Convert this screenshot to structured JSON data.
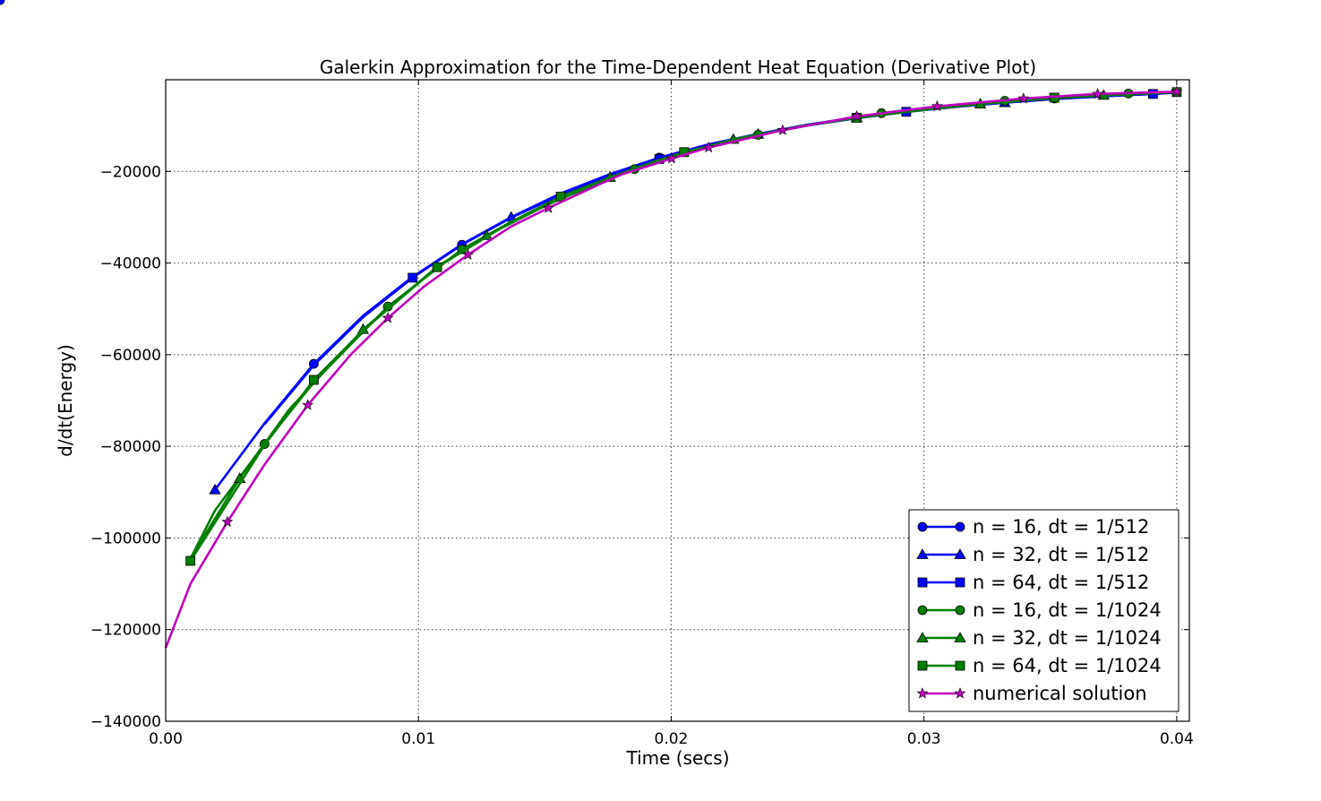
{
  "chart_data": {
    "type": "line",
    "title": "Galerkin Approximation for the Time-Dependent Heat Equation (Derivative Plot)",
    "xlabel": "Time (secs)",
    "ylabel": "d/dt(Energy)",
    "xlim": [
      0.0,
      0.0405
    ],
    "ylim": [
      -140000,
      0
    ],
    "xticks": [
      0.0,
      0.01,
      0.02,
      0.03,
      0.04
    ],
    "xtick_labels": [
      "0.00",
      "0.01",
      "0.02",
      "0.03",
      "0.04"
    ],
    "yticks": [
      -140000,
      -120000,
      -100000,
      -80000,
      -60000,
      -40000,
      -20000
    ],
    "ytick_labels": [
      "−140000",
      "−120000",
      "−100000",
      "−80000",
      "−60000",
      "−40000",
      "−20000"
    ],
    "grid": true,
    "legend_position": "lower right",
    "series": [
      {
        "name": "n = 16, dt = 1/512",
        "color": "#0000ff",
        "marker": "circle",
        "x": [
          0.00391,
          0.00586,
          0.00781,
          0.00977,
          0.01172,
          0.01367,
          0.01563,
          0.01758,
          0.01953,
          0.02148,
          0.02344,
          0.02539,
          0.02734,
          0.0293,
          0.03125,
          0.0332,
          0.03516,
          0.03711,
          0.03906,
          0.04
        ],
        "values": [
          -75000,
          -62000,
          -51500,
          -43000,
          -36000,
          -30000,
          -24800,
          -20600,
          -17000,
          -14100,
          -11800,
          -9800,
          -8200,
          -6900,
          -5800,
          -4900,
          -4100,
          -3500,
          -3000,
          -2700
        ],
        "marker_every": [
          1,
          4,
          8,
          12,
          16,
          20
        ]
      },
      {
        "name": "n = 32, dt = 1/512",
        "color": "#0000ff",
        "marker": "triangle",
        "x": [
          0.00195,
          0.00391,
          0.00586,
          0.00781,
          0.00977,
          0.01172,
          0.01367,
          0.01563,
          0.01758,
          0.01953,
          0.02148,
          0.02344,
          0.02539,
          0.02734,
          0.0293,
          0.03125,
          0.0332,
          0.03516,
          0.03711,
          0.03906,
          0.04
        ],
        "values": [
          -89500,
          -75000,
          -62200,
          -51700,
          -43100,
          -35900,
          -30000,
          -25000,
          -20800,
          -17200,
          -14200,
          -11900,
          -9900,
          -8300,
          -7000,
          -5900,
          -5000,
          -4200,
          -3600,
          -3100,
          -2800
        ],
        "marker_every": [
          0,
          6,
          11,
          16
        ]
      },
      {
        "name": "n = 64, dt = 1/512",
        "color": "#0000ff",
        "marker": "square",
        "x": [
          0.00391,
          0.00586,
          0.00781,
          0.00977,
          0.01172,
          0.01367,
          0.01563,
          0.01758,
          0.01953,
          0.02148,
          0.02344,
          0.02539,
          0.02734,
          0.0293,
          0.03125,
          0.0332,
          0.03516,
          0.03711,
          0.03906,
          0.04
        ],
        "values": [
          -75200,
          -62300,
          -51800,
          -43200,
          -36000,
          -30100,
          -25100,
          -20900,
          -17300,
          -14300,
          -12000,
          -10000,
          -8400,
          -7000,
          -5900,
          -5000,
          -4200,
          -3600,
          -3100,
          -2800
        ],
        "marker_every": [
          3,
          8,
          13,
          18
        ]
      },
      {
        "name": "n = 16, dt = 1/1024",
        "color": "#007f00",
        "marker": "circle",
        "x": [
          0.00098,
          0.00195,
          0.00391,
          0.00586,
          0.00879,
          0.01172,
          0.01367,
          0.01563,
          0.01855,
          0.02051,
          0.02344,
          0.02539,
          0.02832,
          0.03027,
          0.0332,
          0.03516,
          0.03809,
          0.04
        ],
        "values": [
          -104500,
          -94000,
          -79500,
          -66000,
          -49500,
          -37000,
          -31000,
          -26000,
          -19500,
          -16000,
          -12000,
          -9900,
          -7300,
          -6000,
          -4600,
          -3900,
          -3000,
          -2700
        ],
        "marker_every": [
          2,
          4,
          5,
          8,
          10,
          12,
          14,
          16
        ]
      },
      {
        "name": "n = 32, dt = 1/1024",
        "color": "#007f00",
        "marker": "triangle",
        "x": [
          0.00098,
          0.00293,
          0.00488,
          0.00781,
          0.01074,
          0.0127,
          0.01563,
          0.01758,
          0.01953,
          0.02246,
          0.02539,
          0.02734,
          0.03027,
          0.03223,
          0.03516,
          0.03711,
          0.04
        ],
        "values": [
          -104500,
          -87000,
          -72000,
          -54500,
          -40800,
          -34000,
          -25800,
          -21300,
          -17500,
          -13000,
          -9900,
          -8300,
          -6400,
          -5300,
          -4000,
          -3400,
          -2700
        ],
        "marker_every": [
          1,
          3,
          5,
          7,
          9,
          11,
          13,
          15
        ]
      },
      {
        "name": "n = 64, dt = 1/1024",
        "color": "#007f00",
        "marker": "square",
        "x": [
          0.00098,
          0.00391,
          0.00586,
          0.00781,
          0.01074,
          0.01367,
          0.01563,
          0.01758,
          0.02051,
          0.02344,
          0.02539,
          0.02734,
          0.03027,
          0.0332,
          0.03516,
          0.04
        ],
        "values": [
          -105000,
          -79700,
          -65500,
          -54700,
          -40900,
          -31000,
          -25500,
          -21300,
          -15800,
          -12000,
          -10000,
          -8300,
          -6100,
          -4600,
          -3900,
          -2700
        ],
        "marker_every": [
          0,
          2,
          4,
          6,
          8,
          11,
          14,
          15
        ]
      },
      {
        "name": "numerical solution",
        "color": "#bf00bf",
        "marker": "star",
        "x": [
          0.0,
          0.00098,
          0.00244,
          0.00391,
          0.00562,
          0.00732,
          0.00879,
          0.01025,
          0.01196,
          0.01367,
          0.01514,
          0.01709,
          0.01807,
          0.02002,
          0.02148,
          0.02441,
          0.02734,
          0.03052,
          0.03394,
          0.03687,
          0.04
        ],
        "values": [
          -124000,
          -110000,
          -96500,
          -84000,
          -71000,
          -60000,
          -52000,
          -45000,
          -38200,
          -32000,
          -28000,
          -23000,
          -20600,
          -17200,
          -14800,
          -11000,
          -8000,
          -5800,
          -4100,
          -3100,
          -2600
        ],
        "marker_every": [
          2,
          4,
          6,
          8,
          10,
          13,
          14,
          15,
          16,
          17,
          18,
          19,
          20
        ]
      }
    ]
  }
}
